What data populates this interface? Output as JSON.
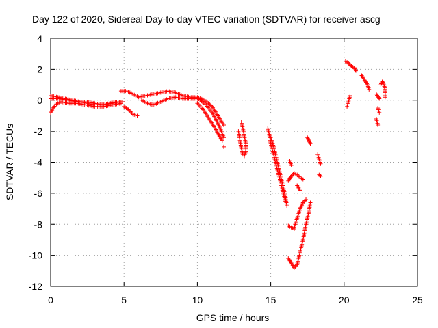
{
  "chart_data": {
    "type": "scatter",
    "title": "Day 122 of 2020, Sidereal Day-to-day VTEC variation (SDTVAR) for receiver ascg",
    "xlabel": "GPS time / hours",
    "ylabel": "SDTVAR / TECUs",
    "xlim": [
      0,
      25
    ],
    "ylim": [
      -12,
      4
    ],
    "xticks": [
      0,
      5,
      10,
      15,
      20,
      25
    ],
    "yticks": [
      4,
      2,
      0,
      -2,
      -4,
      -6,
      -8,
      -10,
      -12
    ],
    "grid": true,
    "marker": "+",
    "color": "#ff0000",
    "segments": [
      {
        "name": "track-a",
        "points": [
          [
            0,
            0.3
          ],
          [
            0.5,
            0.2
          ],
          [
            1,
            0.1
          ],
          [
            1.5,
            0.0
          ],
          [
            2,
            -0.1
          ],
          [
            2.5,
            -0.2
          ],
          [
            3,
            -0.3
          ],
          [
            3.5,
            -0.3
          ],
          [
            4,
            -0.2
          ],
          [
            4.5,
            -0.1
          ],
          [
            4.9,
            -0.1
          ]
        ]
      },
      {
        "name": "track-b",
        "points": [
          [
            0,
            -0.8
          ],
          [
            0.3,
            -0.3
          ],
          [
            0.7,
            -0.1
          ],
          [
            1.2,
            -0.2
          ],
          [
            1.8,
            -0.2
          ],
          [
            2.4,
            -0.3
          ],
          [
            3,
            -0.4
          ],
          [
            3.6,
            -0.4
          ],
          [
            4.2,
            -0.3
          ],
          [
            4.8,
            -0.2
          ]
        ]
      },
      {
        "name": "track-c",
        "points": [
          [
            0,
            0.1
          ],
          [
            0.6,
            0.1
          ],
          [
            1.2,
            0.0
          ],
          [
            1.8,
            -0.1
          ],
          [
            2.4,
            -0.1
          ],
          [
            3,
            -0.2
          ],
          [
            3.6,
            -0.3
          ],
          [
            4.2,
            -0.2
          ],
          [
            4.8,
            -0.1
          ]
        ]
      },
      {
        "name": "track-d",
        "points": [
          [
            4.8,
            0.6
          ],
          [
            5.2,
            0.6
          ],
          [
            5.6,
            0.4
          ],
          [
            6,
            0.2
          ],
          [
            6.4,
            0.3
          ]
        ]
      },
      {
        "name": "track-e",
        "points": [
          [
            5,
            -0.4
          ],
          [
            5.3,
            -0.6
          ],
          [
            5.6,
            -0.9
          ],
          [
            5.9,
            -1.0
          ]
        ]
      },
      {
        "name": "track-f",
        "points": [
          [
            6.2,
            0.0
          ],
          [
            6.6,
            -0.2
          ],
          [
            7,
            -0.3
          ],
          [
            7.5,
            -0.1
          ],
          [
            8,
            0.1
          ],
          [
            8.5,
            0.2
          ],
          [
            9,
            0.1
          ],
          [
            9.5,
            0.1
          ],
          [
            10,
            0.1
          ],
          [
            10.4,
            0.0
          ]
        ]
      },
      {
        "name": "track-g",
        "points": [
          [
            6.5,
            0.3
          ],
          [
            7,
            0.4
          ],
          [
            7.5,
            0.5
          ],
          [
            8,
            0.6
          ],
          [
            8.5,
            0.5
          ],
          [
            9,
            0.3
          ],
          [
            9.5,
            0.2
          ],
          [
            10,
            0.2
          ],
          [
            10.5,
            0.0
          ],
          [
            11,
            -0.4
          ],
          [
            11.4,
            -1.0
          ],
          [
            11.8,
            -1.6
          ]
        ]
      },
      {
        "name": "track-h",
        "points": [
          [
            10,
            -0.2
          ],
          [
            10.4,
            -0.6
          ],
          [
            10.8,
            -1.2
          ],
          [
            11.2,
            -1.8
          ],
          [
            11.5,
            -2.3
          ],
          [
            11.7,
            -2.6
          ]
        ]
      },
      {
        "name": "track-i",
        "points": [
          [
            10.2,
            0.0
          ],
          [
            10.6,
            -0.3
          ],
          [
            11,
            -0.8
          ],
          [
            11.3,
            -1.3
          ],
          [
            11.6,
            -1.9
          ],
          [
            11.8,
            -2.4
          ]
        ]
      },
      {
        "name": "track-j",
        "points": [
          [
            11.8,
            -3.0
          ]
        ]
      },
      {
        "name": "track-k",
        "points": [
          [
            13,
            -1.4
          ],
          [
            13.1,
            -1.8
          ],
          [
            13.2,
            -2.3
          ],
          [
            13.3,
            -2.8
          ],
          [
            13.3,
            -3.3
          ],
          [
            13.2,
            -3.6
          ]
        ]
      },
      {
        "name": "track-l",
        "points": [
          [
            12.8,
            -2.0
          ],
          [
            12.9,
            -2.6
          ],
          [
            13,
            -3.1
          ],
          [
            13.1,
            -3.5
          ]
        ]
      },
      {
        "name": "track-m",
        "points": [
          [
            14.8,
            -1.8
          ],
          [
            14.9,
            -2.2
          ],
          [
            15,
            -2.8
          ],
          [
            15.2,
            -3.5
          ],
          [
            15.4,
            -4.3
          ],
          [
            15.6,
            -5.0
          ],
          [
            15.8,
            -5.8
          ],
          [
            16,
            -6.5
          ]
        ]
      },
      {
        "name": "track-n",
        "points": [
          [
            15,
            -2.4
          ],
          [
            15.2,
            -3.0
          ],
          [
            15.4,
            -3.8
          ],
          [
            15.6,
            -4.6
          ],
          [
            15.8,
            -5.4
          ],
          [
            16,
            -6.2
          ],
          [
            16.1,
            -6.8
          ]
        ]
      },
      {
        "name": "track-o",
        "points": [
          [
            16.2,
            -8.1
          ],
          [
            16.4,
            -8.2
          ],
          [
            16.6,
            -8.3
          ]
        ]
      },
      {
        "name": "track-p",
        "points": [
          [
            16.2,
            -10.2
          ],
          [
            16.4,
            -10.5
          ],
          [
            16.6,
            -10.8
          ],
          [
            16.8,
            -10.6
          ],
          [
            17,
            -9.8
          ],
          [
            17.2,
            -9.0
          ],
          [
            17.4,
            -8.0
          ],
          [
            17.6,
            -7.2
          ],
          [
            17.7,
            -6.6
          ]
        ]
      },
      {
        "name": "track-q",
        "points": [
          [
            16.6,
            -8.2
          ],
          [
            16.8,
            -7.6
          ],
          [
            17,
            -7.0
          ],
          [
            17.2,
            -6.6
          ],
          [
            17.4,
            -6.4
          ]
        ]
      },
      {
        "name": "track-r",
        "points": [
          [
            16.2,
            -5.2
          ],
          [
            16.4,
            -4.9
          ],
          [
            16.6,
            -4.7
          ],
          [
            16.8,
            -4.8
          ],
          [
            17,
            -5.0
          ],
          [
            17.2,
            -5.1
          ]
        ]
      },
      {
        "name": "track-s",
        "points": [
          [
            16.3,
            -3.9
          ],
          [
            16.4,
            -4.2
          ]
        ]
      },
      {
        "name": "track-t",
        "points": [
          [
            16.8,
            -5.5
          ],
          [
            17,
            -5.8
          ]
        ]
      },
      {
        "name": "track-u",
        "points": [
          [
            17.5,
            -2.4
          ],
          [
            17.6,
            -2.6
          ],
          [
            17.7,
            -2.8
          ]
        ]
      },
      {
        "name": "track-v",
        "points": [
          [
            18.2,
            -3.5
          ],
          [
            18.3,
            -3.8
          ],
          [
            18.4,
            -4.1
          ]
        ]
      },
      {
        "name": "track-w",
        "points": [
          [
            18.3,
            -4.8
          ],
          [
            18.4,
            -4.9
          ]
        ]
      },
      {
        "name": "track-x",
        "points": [
          [
            20.1,
            2.5
          ],
          [
            20.3,
            2.4
          ],
          [
            20.5,
            2.2
          ],
          [
            20.7,
            2.1
          ],
          [
            20.8,
            1.9
          ]
        ]
      },
      {
        "name": "track-y",
        "points": [
          [
            20.2,
            -0.4
          ],
          [
            20.3,
            -0.1
          ],
          [
            20.4,
            0.3
          ]
        ]
      },
      {
        "name": "track-z",
        "points": [
          [
            21.2,
            1.6
          ],
          [
            21.4,
            1.3
          ],
          [
            21.6,
            1.0
          ],
          [
            21.7,
            0.7
          ]
        ]
      },
      {
        "name": "track-aa",
        "points": [
          [
            22.2,
            0.4
          ],
          [
            22.4,
            0.1
          ]
        ]
      },
      {
        "name": "track-ab",
        "points": [
          [
            22.3,
            -0.5
          ],
          [
            22.4,
            -0.8
          ]
        ]
      },
      {
        "name": "track-ac",
        "points": [
          [
            22.2,
            -1.2
          ],
          [
            22.3,
            -1.6
          ]
        ]
      },
      {
        "name": "track-ad",
        "points": [
          [
            22.5,
            1.0
          ],
          [
            22.6,
            1.2
          ],
          [
            22.7,
            1.1
          ],
          [
            22.8,
            0.6
          ],
          [
            22.8,
            0.2
          ]
        ]
      }
    ]
  }
}
